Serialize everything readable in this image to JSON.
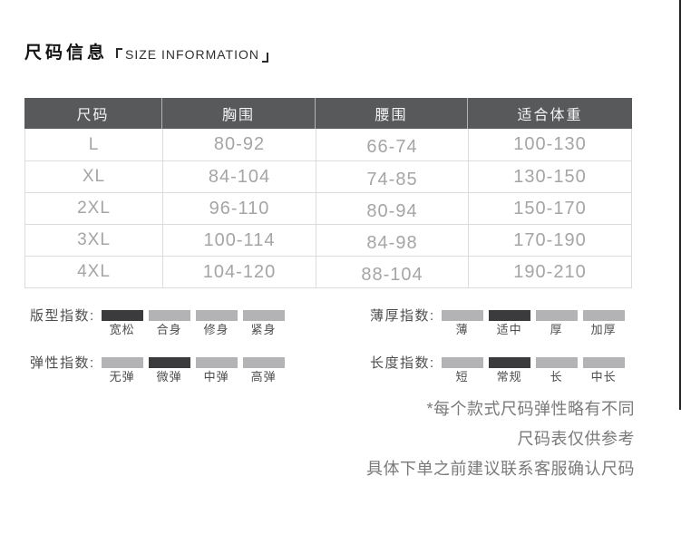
{
  "header": {
    "title": "尺码信息",
    "subtitle": "SIZE INFORMATION"
  },
  "table": {
    "headers": [
      "尺码",
      "胸围",
      "腰围",
      "适合体重"
    ],
    "rows": [
      [
        "L",
        "80-92",
        "66-74",
        "100-130"
      ],
      [
        "XL",
        "84-104",
        "74-85",
        "130-150"
      ],
      [
        "2XL",
        "96-110",
        "80-94",
        "150-170"
      ],
      [
        "3XL",
        "100-114",
        "84-98",
        "170-190"
      ],
      [
        "4XL",
        "104-120",
        "88-104",
        "190-210"
      ]
    ]
  },
  "indicators": [
    {
      "label": "版型指数:",
      "options": [
        "宽松",
        "合身",
        "修身",
        "紧身"
      ],
      "active": 0
    },
    {
      "label": "薄厚指数:",
      "options": [
        "薄",
        "适中",
        "厚",
        "加厚"
      ],
      "active": 1
    },
    {
      "label": "弹性指数:",
      "options": [
        "无弹",
        "微弹",
        "中弹",
        "高弹"
      ],
      "active": 1
    },
    {
      "label": "长度指数:",
      "options": [
        "短",
        "常规",
        "长",
        "中长"
      ],
      "active": 1
    }
  ],
  "notes": [
    "*每个款式尺码弹性略有不同",
    "尺码表仅供参考",
    "具体下单之前建议联系客服确认尺码"
  ],
  "colors": {
    "header_bg": "#58595b",
    "border": "#dcdcdc",
    "body_text": "#a5a5a7",
    "label_text": "#4d4d4d",
    "note_text": "#7a7a7a",
    "bar_active": "#3b3b3d",
    "bar_inactive": "#b3b3b5",
    "edge_line": "#222222"
  }
}
